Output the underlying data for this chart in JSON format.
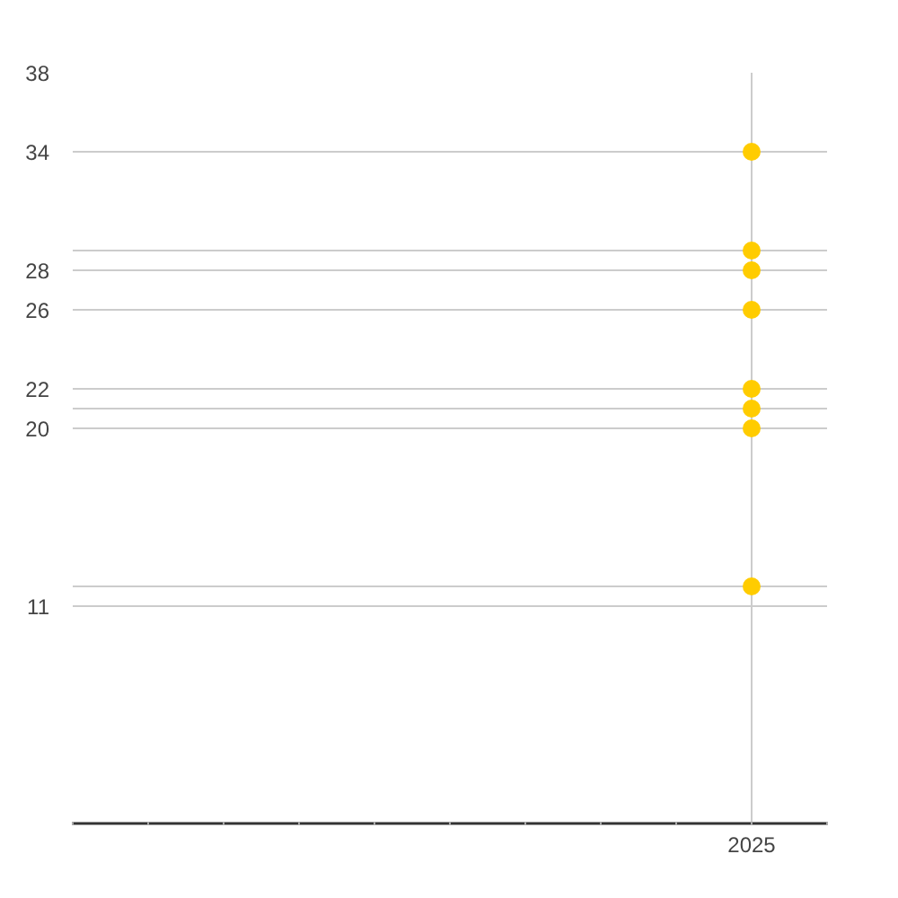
{
  "chart_data": {
    "type": "scatter",
    "categories": [
      null,
      null,
      null,
      null,
      null,
      null,
      null,
      null,
      null,
      "2025",
      null
    ],
    "ylim": [
      0,
      38
    ],
    "yticks": [
      11,
      {
        "value": 12,
        "label": null
      },
      20,
      {
        "value": 21,
        "label": null
      },
      22,
      26,
      28,
      {
        "value": 29,
        "label": null
      },
      34,
      38
    ],
    "grid": true,
    "marker": "circle",
    "series": [
      {
        "color": "#ffcc00",
        "values": [
          null,
          null,
          null,
          null,
          null,
          null,
          null,
          null,
          null,
          34,
          null
        ]
      },
      {
        "color": "#ffcc00",
        "values": [
          null,
          null,
          null,
          null,
          null,
          null,
          null,
          null,
          null,
          29,
          null
        ]
      },
      {
        "color": "#ffcc00",
        "values": [
          null,
          null,
          null,
          null,
          null,
          null,
          null,
          null,
          null,
          28,
          null
        ]
      },
      {
        "color": "#ffcc00",
        "values": [
          null,
          null,
          null,
          null,
          null,
          null,
          null,
          null,
          null,
          26,
          null
        ]
      },
      {
        "color": "#ffcc00",
        "values": [
          null,
          null,
          null,
          null,
          null,
          null,
          null,
          null,
          null,
          22,
          null
        ]
      },
      {
        "color": "#ffcc00",
        "values": [
          null,
          null,
          null,
          null,
          null,
          null,
          null,
          null,
          null,
          21,
          null
        ]
      },
      {
        "color": "#ffcc00",
        "values": [
          null,
          null,
          null,
          null,
          null,
          null,
          null,
          null,
          null,
          20,
          null
        ]
      },
      {
        "color": "#ffcc00",
        "values": [
          null,
          null,
          null,
          null,
          null,
          null,
          null,
          null,
          null,
          12,
          null
        ]
      }
    ]
  }
}
